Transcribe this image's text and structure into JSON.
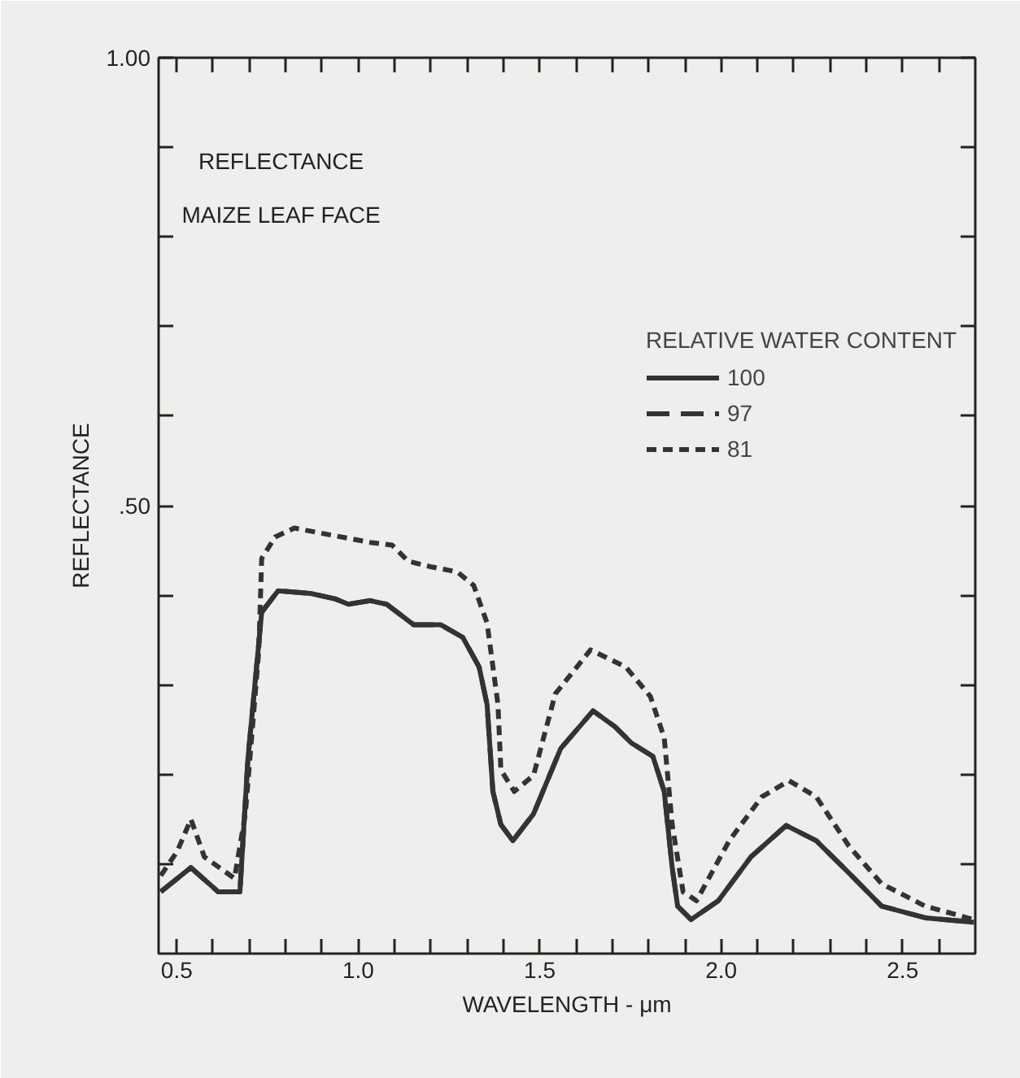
{
  "chart_data": {
    "type": "line",
    "title": "REFLECTANCE",
    "subtitle": "MAIZE LEAF FACE",
    "xlabel": "WAVELENGTH - μm",
    "ylabel": "REFLECTANCE",
    "legend_title": "RELATIVE WATER CONTENT",
    "xlim": [
      0.45,
      2.7
    ],
    "ylim": [
      0,
      1.0
    ],
    "xticks": [
      {
        "value": 0.5,
        "label": "0.5"
      },
      {
        "value": 0.6,
        "label": null
      },
      {
        "value": 0.7,
        "label": null
      },
      {
        "value": 0.8,
        "label": null
      },
      {
        "value": 0.9,
        "label": null
      },
      {
        "value": 1.0,
        "label": "1.0"
      },
      {
        "value": 1.1,
        "label": null
      },
      {
        "value": 1.2,
        "label": null
      },
      {
        "value": 1.3,
        "label": null
      },
      {
        "value": 1.4,
        "label": null
      },
      {
        "value": 1.5,
        "label": "1.5"
      },
      {
        "value": 1.6,
        "label": null
      },
      {
        "value": 1.7,
        "label": null
      },
      {
        "value": 1.8,
        "label": null
      },
      {
        "value": 1.9,
        "label": null
      },
      {
        "value": 2.0,
        "label": "2.0"
      },
      {
        "value": 2.1,
        "label": null
      },
      {
        "value": 2.2,
        "label": null
      },
      {
        "value": 2.3,
        "label": null
      },
      {
        "value": 2.4,
        "label": null
      },
      {
        "value": 2.5,
        "label": "2.5"
      },
      {
        "value": 2.6,
        "label": null
      }
    ],
    "yticks": [
      {
        "value": 0.1,
        "label": null
      },
      {
        "value": 0.2,
        "label": null
      },
      {
        "value": 0.3,
        "label": null
      },
      {
        "value": 0.4,
        "label": null
      },
      {
        "value": 0.5,
        "label": ".50"
      },
      {
        "value": 0.6,
        "label": null
      },
      {
        "value": 0.7,
        "label": null
      },
      {
        "value": 0.8,
        "label": null
      },
      {
        "value": 0.9,
        "label": null
      },
      {
        "value": 1.0,
        "label": "1.00"
      }
    ],
    "grid": false,
    "legend": "top right",
    "marker": "none",
    "series": [
      {
        "name": "100",
        "color": "#333333",
        "line_style": "solid",
        "x": [
          0.456,
          0.539,
          0.614,
          0.674,
          0.696,
          0.734,
          0.779,
          0.869,
          0.936,
          0.973,
          1.033,
          1.078,
          1.153,
          1.228,
          1.288,
          1.333,
          1.355,
          1.371,
          1.393,
          1.426,
          1.483,
          1.558,
          1.647,
          1.708,
          1.753,
          1.812,
          1.843,
          1.865,
          1.88,
          1.917,
          1.992,
          2.082,
          2.179,
          2.262,
          2.352,
          2.442,
          2.562,
          2.696
        ],
        "values": [
          0.069,
          0.096,
          0.069,
          0.069,
          0.217,
          0.381,
          0.405,
          0.402,
          0.396,
          0.39,
          0.394,
          0.39,
          0.367,
          0.367,
          0.353,
          0.32,
          0.278,
          0.181,
          0.144,
          0.126,
          0.156,
          0.229,
          0.271,
          0.253,
          0.235,
          0.22,
          0.181,
          0.096,
          0.053,
          0.038,
          0.059,
          0.108,
          0.143,
          0.126,
          0.09,
          0.053,
          0.04,
          0.035
        ]
      },
      {
        "name": "97",
        "color": "#333333",
        "line_style": "dashed",
        "x": [
          0.456,
          0.539,
          0.614,
          0.674,
          0.696,
          0.734,
          0.779,
          0.869,
          0.936,
          0.973,
          1.033,
          1.078,
          1.153,
          1.228,
          1.288,
          1.333,
          1.355,
          1.371,
          1.393,
          1.426,
          1.483,
          1.558,
          1.647,
          1.708,
          1.753,
          1.812,
          1.843,
          1.865,
          1.88,
          1.917,
          1.992,
          2.082,
          2.179,
          2.262,
          2.352,
          2.442,
          2.562,
          2.696
        ],
        "values": [
          0.069,
          0.096,
          0.069,
          0.069,
          0.217,
          0.381,
          0.405,
          0.402,
          0.396,
          0.39,
          0.394,
          0.39,
          0.367,
          0.367,
          0.353,
          0.32,
          0.278,
          0.181,
          0.144,
          0.126,
          0.156,
          0.229,
          0.271,
          0.253,
          0.235,
          0.22,
          0.181,
          0.096,
          0.053,
          0.038,
          0.059,
          0.108,
          0.143,
          0.126,
          0.09,
          0.053,
          0.04,
          0.035
        ]
      },
      {
        "name": "81",
        "color": "#333333",
        "line_style": "dotted",
        "x": [
          0.456,
          0.501,
          0.539,
          0.576,
          0.659,
          0.689,
          0.726,
          0.734,
          0.771,
          0.824,
          0.928,
          1.033,
          1.093,
          1.138,
          1.198,
          1.273,
          1.318,
          1.355,
          1.385,
          1.393,
          1.43,
          1.483,
          1.543,
          1.64,
          1.737,
          1.805,
          1.843,
          1.865,
          1.895,
          1.932,
          2.022,
          2.112,
          2.187,
          2.262,
          2.352,
          2.442,
          2.562,
          2.696
        ],
        "values": [
          0.087,
          0.114,
          0.15,
          0.108,
          0.084,
          0.156,
          0.338,
          0.441,
          0.465,
          0.475,
          0.467,
          0.459,
          0.456,
          0.438,
          0.432,
          0.426,
          0.411,
          0.369,
          0.278,
          0.205,
          0.181,
          0.199,
          0.29,
          0.339,
          0.32,
          0.287,
          0.241,
          0.144,
          0.069,
          0.059,
          0.126,
          0.175,
          0.193,
          0.175,
          0.12,
          0.078,
          0.053,
          0.038
        ]
      }
    ]
  }
}
